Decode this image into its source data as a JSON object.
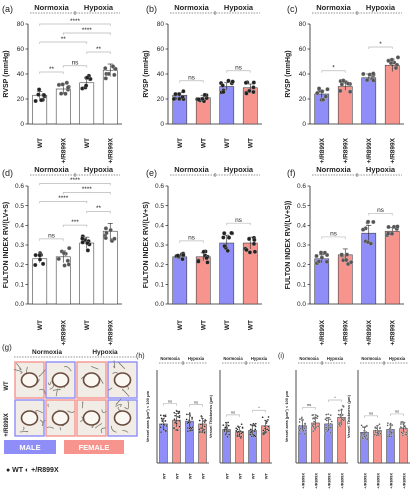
{
  "figure": {
    "groups": {
      "normoxia": "Normoxia",
      "hypoxia": "Hypoxia"
    },
    "colors": {
      "wt_white": "#ffffff",
      "wt_stroke": "#444444",
      "male": "#8f8ef8",
      "female": "#f7948e",
      "grid": "#b9b9b9",
      "ink": "#222222"
    },
    "legend": {
      "male": "MALE",
      "female": "FEMALE",
      "symbols": "● WT  ◐ +/R899X"
    }
  },
  "chart_data": [
    {
      "panel": "(a)",
      "type": "bar",
      "ylabel": "RVSP (mmHg)",
      "ylim": [
        0,
        80
      ],
      "yticks": [
        0,
        20,
        40,
        60,
        80
      ],
      "categories": [
        "WT",
        "+/R899X",
        "WT",
        "+/R899X"
      ],
      "group_labels": [
        "Normoxia",
        "Hypoxia"
      ],
      "values": [
        23,
        28,
        33,
        43
      ],
      "errors": [
        3,
        4,
        4,
        5
      ],
      "bar_colors": [
        "white",
        "white",
        "white",
        "white"
      ],
      "comparisons": [
        {
          "from": 0,
          "to": 1,
          "label": "**"
        },
        {
          "from": 2,
          "to": 3,
          "label": "**"
        },
        {
          "from": 0,
          "to": 2,
          "label": "**"
        },
        {
          "from": 1,
          "to": 2,
          "label": "ns"
        },
        {
          "from": 1,
          "to": 3,
          "label": "****"
        },
        {
          "from": 0,
          "to": 3,
          "label": "****"
        }
      ]
    },
    {
      "panel": "(b)",
      "type": "bar",
      "ylabel": "RVSP (mmHg)",
      "ylim": [
        0,
        80
      ],
      "yticks": [
        0,
        20,
        40,
        60,
        80
      ],
      "categories": [
        "WT",
        "WT",
        "WT",
        "WT"
      ],
      "group_labels": [
        "Normoxia",
        "Hypoxia"
      ],
      "values": [
        23,
        21,
        30,
        29
      ],
      "errors": [
        2,
        2,
        3,
        3
      ],
      "bar_colors": [
        "male",
        "female",
        "male",
        "female"
      ],
      "comparisons": [
        {
          "from": 0,
          "to": 1,
          "label": "ns"
        },
        {
          "from": 2,
          "to": 3,
          "label": "ns"
        }
      ]
    },
    {
      "panel": "(c)",
      "type": "bar",
      "ylabel": "RVSP (mmHg)",
      "ylim": [
        0,
        80
      ],
      "yticks": [
        0,
        20,
        40,
        60,
        80
      ],
      "categories": [
        "+/R899X",
        "+/R899X",
        "+/R899X",
        "+/R899X"
      ],
      "group_labels": [
        "Normoxia",
        "Hypoxia"
      ],
      "values": [
        24,
        30,
        37,
        47
      ],
      "errors": [
        3,
        3,
        3,
        5
      ],
      "bar_colors": [
        "male",
        "female",
        "male",
        "female"
      ],
      "comparisons": [
        {
          "from": 0,
          "to": 1,
          "label": "*"
        },
        {
          "from": 2,
          "to": 3,
          "label": "*"
        }
      ]
    },
    {
      "panel": "(d)",
      "type": "bar",
      "ylabel": "FULTON INDEX RV/(LV+S)",
      "ylim": [
        0,
        0.6
      ],
      "yticks": [
        0.0,
        0.1,
        0.2,
        0.3,
        0.4,
        0.5,
        0.6
      ],
      "categories": [
        "WT",
        "+/R899X",
        "WT",
        "+/R899X"
      ],
      "group_labels": [
        "Normoxia",
        "Hypoxia"
      ],
      "values": [
        0.23,
        0.24,
        0.31,
        0.37
      ],
      "errors": [
        0.02,
        0.03,
        0.03,
        0.04
      ],
      "bar_colors": [
        "white",
        "white",
        "white",
        "white"
      ],
      "comparisons": [
        {
          "from": 0,
          "to": 1,
          "label": "ns"
        },
        {
          "from": 2,
          "to": 3,
          "label": "**"
        },
        {
          "from": 1,
          "to": 2,
          "label": "***"
        },
        {
          "from": 0,
          "to": 2,
          "label": "****"
        },
        {
          "from": 1,
          "to": 3,
          "label": "****"
        },
        {
          "from": 0,
          "to": 3,
          "label": "****"
        }
      ]
    },
    {
      "panel": "(e)",
      "type": "bar",
      "ylabel": "FULTON INDEX RV/(LV+S)",
      "ylim": [
        0,
        0.6
      ],
      "yticks": [
        0.0,
        0.1,
        0.2,
        0.3,
        0.4,
        0.5,
        0.6
      ],
      "categories": [
        "WT",
        "WT",
        "WT",
        "WT"
      ],
      "group_labels": [
        "Normoxia",
        "Hypoxia"
      ],
      "values": [
        0.24,
        0.24,
        0.31,
        0.31
      ],
      "errors": [
        0.01,
        0.02,
        0.04,
        0.03
      ],
      "bar_colors": [
        "male",
        "female",
        "male",
        "female"
      ],
      "comparisons": [
        {
          "from": 0,
          "to": 1,
          "label": "ns"
        },
        {
          "from": 2,
          "to": 3,
          "label": "ns"
        }
      ]
    },
    {
      "panel": "(f)",
      "type": "bar",
      "ylabel": "FULTON INDEX RV/(LV+S))",
      "ylim": [
        0,
        0.6
      ],
      "yticks": [
        0.0,
        0.1,
        0.2,
        0.3,
        0.4,
        0.5,
        0.6
      ],
      "categories": [
        "+/R899X",
        "+/R899X",
        "+/R899X",
        "+/R899X"
      ],
      "group_labels": [
        "Normoxia",
        "Hypoxia"
      ],
      "values": [
        0.23,
        0.25,
        0.36,
        0.37
      ],
      "errors": [
        0.02,
        0.03,
        0.04,
        0.02
      ],
      "bar_colors": [
        "male",
        "female",
        "male",
        "female"
      ],
      "comparisons": [
        {
          "from": 0,
          "to": 1,
          "label": "ns"
        },
        {
          "from": 2,
          "to": 3,
          "label": "ns"
        }
      ]
    },
    {
      "panel": "(h)",
      "type": "bar",
      "ylabel": "Vessel area (μm²) < 100 μm",
      "ylim": [
        0,
        10000
      ],
      "categories": [
        "WT",
        "WT",
        "WT",
        "WT"
      ],
      "group_labels": [
        "Normoxia",
        "Hypoxia"
      ],
      "values": [
        4200,
        4600,
        4500,
        4200
      ],
      "errors": [
        600,
        700,
        700,
        600
      ],
      "bar_colors": [
        "male",
        "female",
        "male",
        "female"
      ],
      "comparisons": [
        {
          "from": 0,
          "to": 1,
          "label": "ns"
        },
        {
          "from": 2,
          "to": 3,
          "label": "ns"
        }
      ]
    },
    {
      "panel": "(h)",
      "type": "bar",
      "ylabel": "Vessel Thickness (μm)",
      "ylim": [
        0,
        10
      ],
      "categories": [
        "WT",
        "WT",
        "WT",
        "WT"
      ],
      "group_labels": [
        "Normoxia",
        "Hypoxia"
      ],
      "values": [
        3.6,
        3.4,
        3.5,
        4.0
      ],
      "errors": [
        0.5,
        0.5,
        0.5,
        0.6
      ],
      "bar_colors": [
        "male",
        "female",
        "male",
        "female"
      ],
      "comparisons": [
        {
          "from": 0,
          "to": 1,
          "label": "ns"
        },
        {
          "from": 2,
          "to": 3,
          "label": "*"
        }
      ]
    },
    {
      "panel": "(i)",
      "type": "bar",
      "ylabel": "Vessel area (μm²) < 100 μm",
      "ylim": [
        0,
        10000
      ],
      "categories": [
        "+/R899X",
        "+/R899X",
        "+/R899X",
        "+/R899X"
      ],
      "group_labels": [
        "Normoxia",
        "Hypoxia"
      ],
      "values": [
        4000,
        4300,
        4200,
        4900
      ],
      "errors": [
        600,
        600,
        700,
        800
      ],
      "bar_colors": [
        "male",
        "female",
        "male",
        "female"
      ],
      "comparisons": [
        {
          "from": 0,
          "to": 1,
          "label": "ns"
        },
        {
          "from": 2,
          "to": 3,
          "label": "*"
        }
      ]
    },
    {
      "panel": "(i)",
      "type": "bar",
      "ylabel": "Vessel Thickness (μm)",
      "ylim": [
        0,
        10
      ],
      "categories": [
        "+/R899X",
        "+/R899X",
        "+/R899X",
        "+/R899X"
      ],
      "group_labels": [
        "Normoxia",
        "Hypoxia"
      ],
      "values": [
        3.3,
        3.5,
        3.6,
        3.7
      ],
      "errors": [
        0.5,
        0.5,
        0.5,
        0.5
      ],
      "bar_colors": [
        "male",
        "female",
        "male",
        "female"
      ],
      "comparisons": [
        {
          "from": 0,
          "to": 1,
          "label": "ns"
        },
        {
          "from": 2,
          "to": 3,
          "label": "ns"
        }
      ]
    }
  ],
  "panel_g": {
    "label": "(g)",
    "columns": [
      "Normoxia",
      "Hypoxia"
    ],
    "rows": [
      "WT",
      "+/R899X"
    ]
  }
}
